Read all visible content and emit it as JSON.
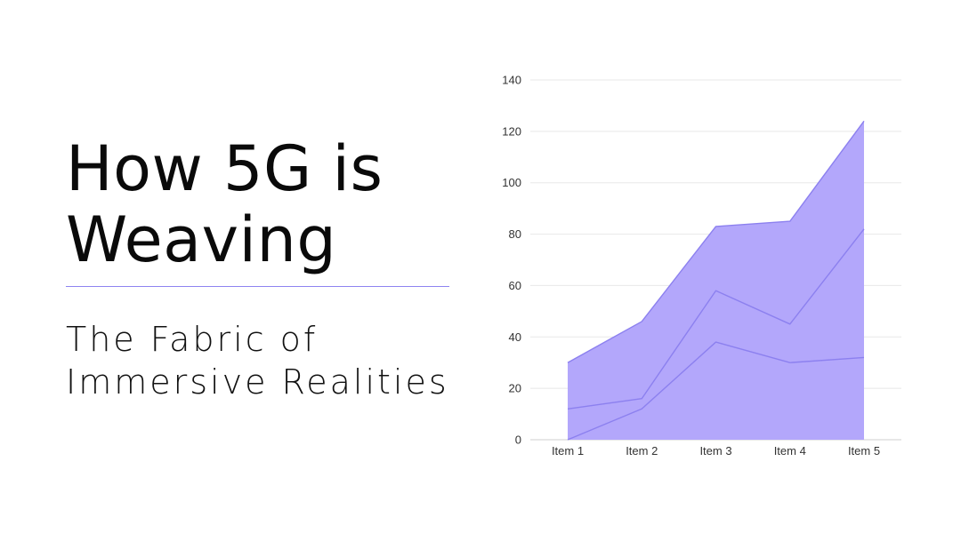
{
  "slide": {
    "title_lines": [
      "How 5G is",
      "Weaving"
    ],
    "subtitle_lines": [
      "The Fabric of",
      "Immersive Realities"
    ],
    "accent_color": "#8e84f0"
  },
  "chart_data": {
    "type": "area",
    "categories": [
      "Item 1",
      "Item 2",
      "Item 3",
      "Item 4",
      "Item 5"
    ],
    "series": [
      {
        "values": [
          30,
          46,
          83,
          85,
          124
        ]
      },
      {
        "values": [
          12,
          16,
          58,
          45,
          82
        ]
      },
      {
        "values": [
          0,
          12,
          38,
          30,
          32
        ]
      }
    ],
    "ylim": [
      0,
      140
    ],
    "yticks": [
      0,
      20,
      40,
      60,
      80,
      100,
      120,
      140
    ],
    "grid": true,
    "fill_color": "#b3a7fb",
    "line_color": "#8c80ef",
    "grid_color": "#e8e8e8",
    "axis_color": "#cfcfcf"
  }
}
